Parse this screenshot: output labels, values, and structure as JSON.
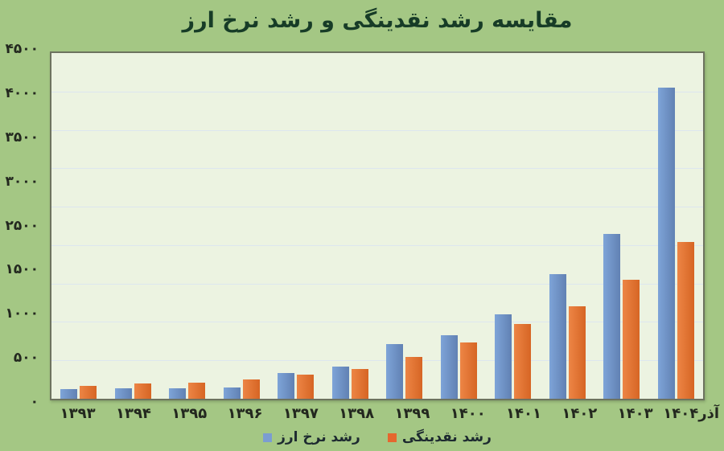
{
  "chart_data": {
    "type": "bar",
    "title": "مقایسه رشد نقدینگی و رشد نرخ ارز",
    "categories": [
      "۱۳۹۳",
      "۱۳۹۴",
      "۱۳۹۵",
      "۱۳۹۶",
      "۱۳۹۷",
      "۱۳۹۸",
      "۱۳۹۹",
      "۱۴۰۰",
      "۱۴۰۱",
      "۱۴۰۲",
      "۱۴۰۳",
      "آذر۱۴۰۴"
    ],
    "series": [
      {
        "name": "رشد نرخ ارز",
        "slug": "exchange-rate-growth",
        "color_start": "#7ea4d8",
        "color_end": "#6181b3",
        "legend_color": "#7b9dd1",
        "values": [
          130,
          140,
          140,
          150,
          330,
          415,
          715,
          830,
          1100,
          1620,
          2150,
          4050
        ]
      },
      {
        "name": "رشد نقدینگی",
        "slug": "liquidity-growth",
        "color_start": "#ed8545",
        "color_end": "#d66524",
        "legend_color": "#e5672e",
        "values": [
          165,
          200,
          210,
          250,
          310,
          385,
          540,
          735,
          975,
          1200,
          1545,
          2045
        ]
      }
    ],
    "xlabel": "",
    "ylabel": "",
    "ylim": [
      0,
      4500
    ],
    "y_tick_labels_top_to_bottom": [
      "۴۵۰۰",
      "۴۰۰۰",
      "۳۵۰۰",
      "۳۰۰۰",
      "۲۵۰۰",
      "۱۵۰۰",
      "۱۰۰۰",
      "۵۰۰",
      "۰"
    ],
    "y_gridline_intervals": 9,
    "grid": "horizontal",
    "legend_position": "bottom-center",
    "colors": {
      "page_background": "#a4c784",
      "plot_background": "#ecf3e1",
      "plot_border": "#6d735f",
      "gridline": "#dde6ef",
      "title_text": "#173c27",
      "axis_text": "#23281f",
      "legend_text": "#1d2a30"
    }
  }
}
